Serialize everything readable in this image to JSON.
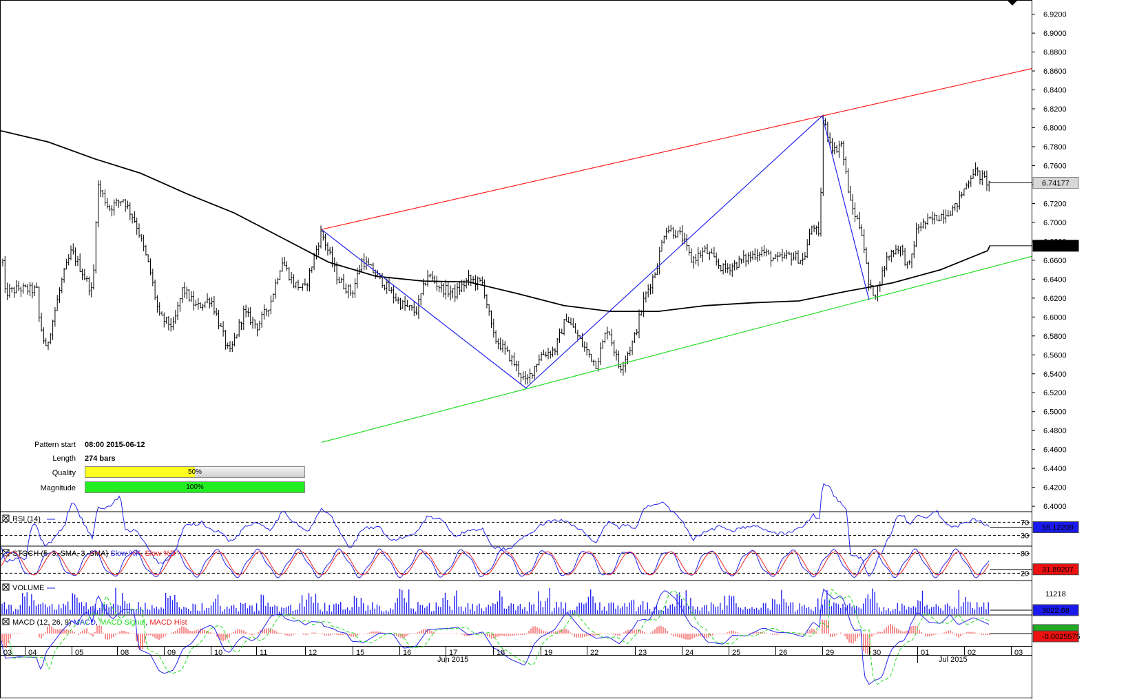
{
  "chart_data": {
    "type": "candlestick",
    "price_axis": {
      "ticks": [
        "6.9200",
        "6.9000",
        "6.8800",
        "6.8600",
        "6.8400",
        "6.8200",
        "6.8000",
        "6.7800",
        "6.7600",
        "6.7400",
        "6.7200",
        "6.7000",
        "6.6800",
        "6.6600",
        "6.6400",
        "6.6200",
        "6.6000",
        "6.5800",
        "6.5600",
        "6.5400",
        "6.5200",
        "6.5000",
        "6.4800",
        "6.4600",
        "6.4400",
        "6.4200",
        "6.4000"
      ],
      "ylim": [
        6.395,
        6.935
      ],
      "current_price": "6.74177",
      "ma_value": "6.67532"
    },
    "x_axis": {
      "day_labels": [
        "03",
        "04",
        "05",
        "08",
        "09",
        "10",
        "11",
        "12",
        "15",
        "16",
        "17",
        "18",
        "19",
        "22",
        "23",
        "24",
        "25",
        "26",
        "29",
        "30",
        "01",
        "02",
        "03"
      ],
      "month_labels": [
        "Jun 2015",
        "Jul 2015"
      ]
    },
    "pattern_lines": {
      "resistance": [
        [
          "06-12",
          6.6925
        ],
        [
          "06-29",
          6.8125
        ],
        [
          "07-03",
          6.8625
        ]
      ],
      "support": [
        [
          "06-12",
          6.4675
        ],
        [
          "06-18",
          6.525
        ],
        [
          "06-30",
          6.618
        ],
        [
          "07-03",
          6.664
        ]
      ],
      "zigzag": [
        [
          "06-12",
          6.6925
        ],
        [
          "06-18",
          6.525
        ],
        [
          "06-29",
          6.8125
        ],
        [
          "06-30",
          6.618
        ]
      ]
    },
    "pattern_info": {
      "start_label": "Pattern start",
      "start_value": "08:00 2015-06-12",
      "length_label": "Length",
      "length_value": "274 bars",
      "quality_label": "Quality",
      "quality_value": "50%",
      "quality_fraction": 0.5,
      "magnitude_label": "Magnitude",
      "magnitude_value": "100%",
      "magnitude_fraction": 1.0
    },
    "indicators": {
      "rsi": {
        "title": "RSI (14)",
        "levels": [
          "70",
          "30"
        ],
        "value": "55.12209",
        "ylim": [
          0,
          100
        ]
      },
      "stoch": {
        "title": "STOCH (5, 3, SMA, 3, SMA)",
        "k_label": "Slow %K",
        "d_label": "Slow %D",
        "levels": [
          "80",
          "20"
        ],
        "value": "31.89207",
        "ylim": [
          0,
          100
        ]
      },
      "volume": {
        "title": "VOLUME",
        "tick": "11218",
        "value": "3022.68"
      },
      "macd": {
        "title": "MACD (12, 26, 9)",
        "line_label": "MACD",
        "signal_label": "MACD Signal",
        "hist_label": "MACD Hist",
        "value": "-0.0025575"
      }
    }
  },
  "colors": {
    "resistance": "#ff2020",
    "support": "#22dd22",
    "zigzag": "#2222ee",
    "ma": "#000000",
    "rsi": "#2222ee",
    "stoch_k": "#2222ee",
    "stoch_d": "#ee2222",
    "volume": "#2222ee",
    "macd": "#2222ee",
    "macd_signal": "#22dd22",
    "macd_hist": "#ee2222",
    "quality_fill": "#ffff22",
    "magnitude_fill": "#22ee22"
  },
  "icons": [
    "dropdown-arrow-icon",
    "close-box-icon"
  ]
}
